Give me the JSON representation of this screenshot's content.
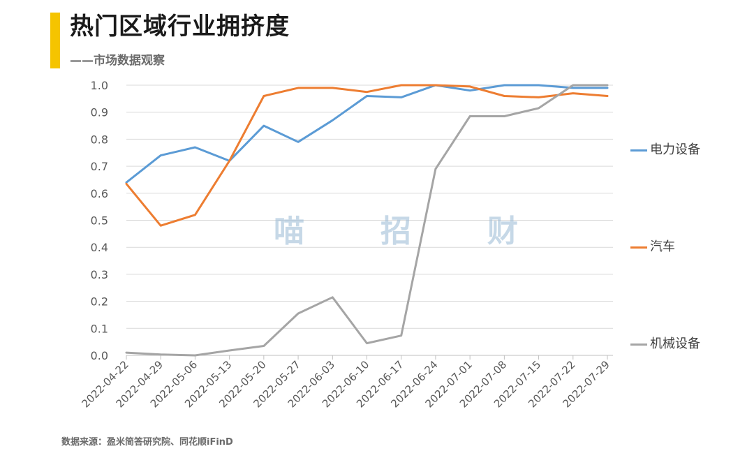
{
  "header": {
    "title": "热门区域行业拥挤度",
    "subtitle": "——市场数据观察"
  },
  "watermark": [
    "喵",
    "招",
    "财"
  ],
  "source_note": "数据来源：盈米简答研究院、同花顺iFinD",
  "colors": {
    "accent": "#f5c400",
    "grid": "#d9d9d9",
    "axis_text": "#595959"
  },
  "chart_data": {
    "type": "line",
    "categories": [
      "2022-04-22",
      "2022-04-29",
      "2022-05-06",
      "2022-05-13",
      "2022-05-20",
      "2022-05-27",
      "2022-06-03",
      "2022-06-10",
      "2022-06-17",
      "2022-06-24",
      "2022-07-01",
      "2022-07-08",
      "2022-07-15",
      "2022-07-22",
      "2022-07-29"
    ],
    "yticks": [
      "0.0",
      "0.1",
      "0.2",
      "0.3",
      "0.4",
      "0.5",
      "0.6",
      "0.7",
      "0.8",
      "0.9",
      "1.0"
    ],
    "ylim": [
      0,
      1
    ],
    "grid": true,
    "legend_position": "right",
    "series": [
      {
        "name": "电力设备",
        "color": "#5b9bd5",
        "values": [
          0.64,
          0.74,
          0.77,
          0.72,
          0.85,
          0.79,
          0.87,
          0.96,
          0.955,
          1.0,
          0.98,
          1.0,
          1.0,
          0.99,
          0.99
        ]
      },
      {
        "name": "汽车",
        "color": "#ed7d31",
        "values": [
          0.635,
          0.48,
          0.52,
          0.72,
          0.96,
          0.99,
          0.99,
          0.975,
          1.0,
          1.0,
          0.995,
          0.96,
          0.955,
          0.97,
          0.96
        ]
      },
      {
        "name": "机械设备",
        "color": "#a5a5a5",
        "values": [
          0.01,
          0.003,
          0.0,
          0.018,
          0.035,
          0.155,
          0.215,
          0.045,
          0.073,
          0.69,
          0.885,
          0.885,
          0.915,
          1.0,
          1.0
        ]
      }
    ]
  }
}
